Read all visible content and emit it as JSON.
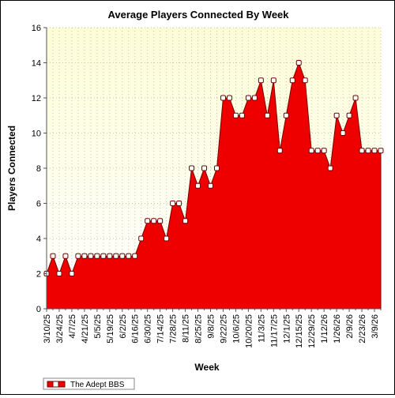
{
  "chart_data": {
    "type": "area",
    "title": "Average Players Connected By Week",
    "xlabel": "Week",
    "ylabel": "Players Connected",
    "ylim": [
      0,
      16
    ],
    "yticks": [
      0,
      2,
      4,
      6,
      8,
      10,
      12,
      14,
      16
    ],
    "grid": true,
    "legend_position": "bottom-left",
    "colors": {
      "fill": "#ee0000",
      "stroke": "#770000",
      "plot_bg_top": "#fdfdd8",
      "plot_bg_bottom": "#ffffff"
    },
    "x": [
      "3/10/25",
      "3/17/25",
      "3/24/25",
      "3/31/25",
      "4/7/25",
      "4/14/25",
      "4/21/25",
      "4/28/25",
      "5/5/25",
      "5/12/25",
      "5/19/25",
      "5/26/25",
      "6/2/25",
      "6/9/25",
      "6/16/25",
      "6/23/25",
      "6/30/25",
      "7/7/25",
      "7/14/25",
      "7/21/25",
      "7/28/25",
      "8/4/25",
      "8/11/25",
      "8/18/25",
      "8/25/25",
      "9/1/25",
      "9/8/25",
      "9/15/25",
      "9/22/25",
      "9/29/25",
      "10/6/25",
      "10/13/25",
      "10/20/25",
      "10/27/25",
      "11/3/25",
      "11/10/25",
      "11/17/25",
      "11/24/25",
      "12/1/25",
      "12/8/25",
      "12/15/25",
      "12/22/25",
      "12/29/25",
      "1/5/26",
      "1/12/26",
      "1/19/26",
      "1/26/26",
      "2/2/26",
      "2/9/26",
      "2/16/26",
      "2/23/26",
      "3/2/26",
      "3/9/26",
      "3/16/26"
    ],
    "xtick_labels": [
      "3/10/25",
      "3/24/25",
      "4/7/25",
      "4/21/25",
      "5/5/25",
      "5/19/25",
      "6/2/25",
      "6/16/25",
      "6/30/25",
      "7/14/25",
      "7/28/25",
      "8/11/25",
      "8/25/25",
      "9/8/25",
      "9/22/25",
      "10/6/25",
      "10/20/25",
      "11/3/25",
      "11/17/25",
      "12/1/25",
      "12/15/25",
      "12/29/25",
      "1/12/26",
      "1/26/26",
      "2/9/26",
      "2/23/26",
      "3/9/26"
    ],
    "series": [
      {
        "name": "The Adept BBS",
        "values": [
          2,
          3,
          2,
          3,
          2,
          3,
          3,
          3,
          3,
          3,
          3,
          3,
          3,
          3,
          3,
          4,
          5,
          5,
          5,
          4,
          6,
          6,
          5,
          8,
          7,
          8,
          7,
          8,
          12,
          12,
          11,
          11,
          12,
          12,
          13,
          11,
          13,
          9,
          11,
          13,
          14,
          13,
          9,
          9,
          9,
          8,
          11,
          10,
          11,
          12,
          9,
          9,
          9,
          9
        ]
      }
    ]
  }
}
